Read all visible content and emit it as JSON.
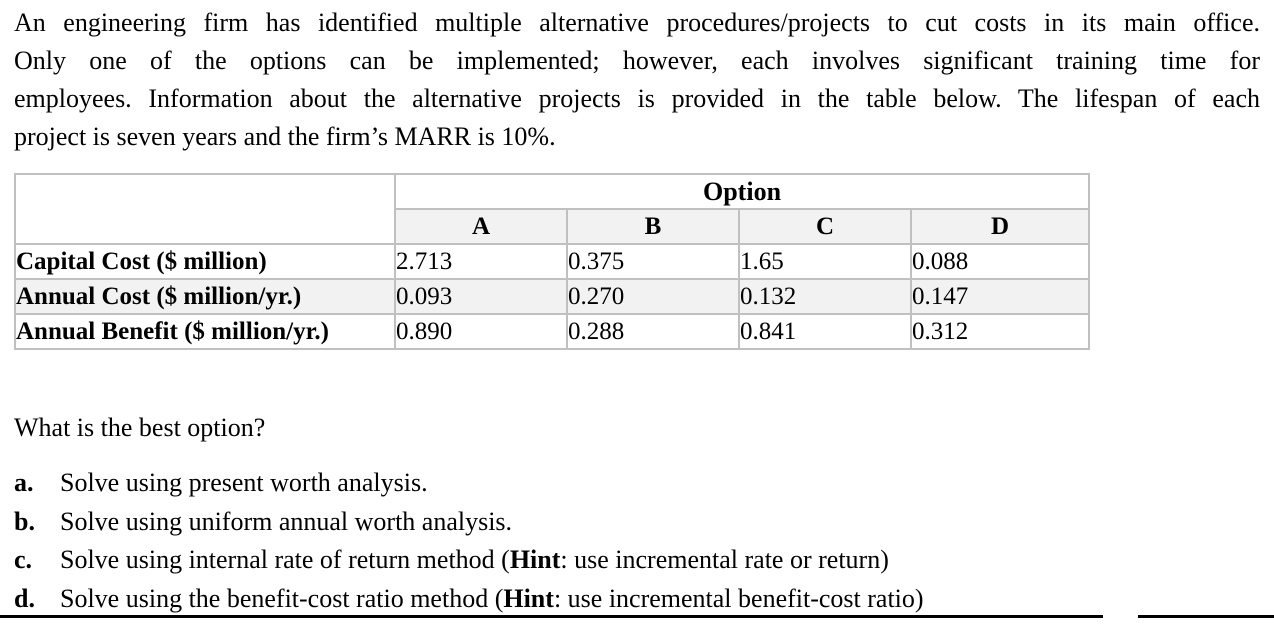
{
  "intro": {
    "lines": [
      "An engineering firm has identified multiple alternative procedures/projects to cut costs in its main office.",
      "Only one of the options can be implemented; however, each involves significant training time for",
      "employees. Information about the alternative projects is provided in the table below. The lifespan of each",
      "project is seven years and the firm’s MARR is 10%."
    ]
  },
  "table": {
    "option_header": "Option",
    "col_headers": [
      "A",
      "B",
      "C",
      "D"
    ],
    "rows": [
      {
        "label": "Capital Cost ($ million)",
        "values": [
          "2.713",
          "0.375",
          "1.65",
          "0.088"
        ]
      },
      {
        "label": "Annual Cost ($ million/yr.)",
        "values": [
          "0.093",
          "0.270",
          "0.132",
          "0.147"
        ]
      },
      {
        "label": "Annual Benefit ($ million/yr.)",
        "values": [
          "0.890",
          "0.288",
          "0.841",
          "0.312"
        ]
      }
    ]
  },
  "question": "What is the best option?",
  "items": [
    {
      "marker": "a.",
      "text": "Solve using present worth analysis."
    },
    {
      "marker": "b.",
      "text": "Solve using uniform annual worth analysis."
    },
    {
      "marker": "c.",
      "text": "Solve using internal rate of return method (",
      "hint": "Hint",
      "rest": ": use incremental rate or return)"
    },
    {
      "marker": "d.",
      "text": "Solve using the benefit-cost ratio method (",
      "hint": "Hint",
      "rest": ": use incremental benefit-cost ratio)"
    }
  ],
  "colors": {
    "text": "#000000",
    "table_border": "#c0c0c0",
    "row_shade": "#f2f2f2",
    "rule": "#000000"
  }
}
